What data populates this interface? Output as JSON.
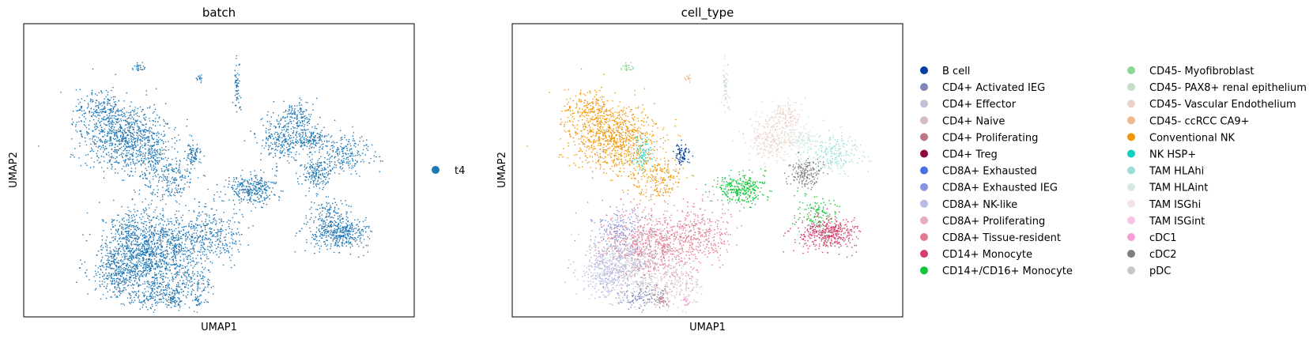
{
  "chart_data": [
    {
      "type": "scatter",
      "title": "batch",
      "xlabel": "UMAP1",
      "ylabel": "UMAP2",
      "ticks": "none",
      "grid": false,
      "legend_placement": "right",
      "series": [
        {
          "name": "t4",
          "color": "#1f77b4"
        }
      ]
    },
    {
      "type": "scatter",
      "title": "cell_type",
      "xlabel": "UMAP1",
      "ylabel": "UMAP2",
      "ticks": "none",
      "grid": false,
      "legend_placement": "right",
      "legend_columns": 2,
      "series": [
        {
          "name": "B cell",
          "color": "#023fa5"
        },
        {
          "name": "CD4+ Activated IEG",
          "color": "#7d87b9"
        },
        {
          "name": "CD4+ Effector",
          "color": "#bec1d4"
        },
        {
          "name": "CD4+ Naive",
          "color": "#d6bcc0"
        },
        {
          "name": "CD4+ Proliferating",
          "color": "#bb7784"
        },
        {
          "name": "CD4+ Treg",
          "color": "#8e063b"
        },
        {
          "name": "CD8A+ Exhausted",
          "color": "#4a6fe3"
        },
        {
          "name": "CD8A+ Exhausted IEG",
          "color": "#8595e1"
        },
        {
          "name": "CD8A+ NK-like",
          "color": "#b5bbe3"
        },
        {
          "name": "CD8A+ Proliferating",
          "color": "#e6afb9"
        },
        {
          "name": "CD8A+ Tissue-resident",
          "color": "#e07b91"
        },
        {
          "name": "CD14+ Monocyte",
          "color": "#d33f6a"
        },
        {
          "name": "CD14+/CD16+ Monocyte",
          "color": "#11c638"
        },
        {
          "name": "CD45- Myofibroblast",
          "color": "#8dd593"
        },
        {
          "name": "CD45- PAX8+ renal epithelium",
          "color": "#c6dec7"
        },
        {
          "name": "CD45- Vascular Endothelium",
          "color": "#ead3c6"
        },
        {
          "name": "CD45- ccRCC CA9+",
          "color": "#f0b98d"
        },
        {
          "name": "Conventional NK",
          "color": "#ef9708"
        },
        {
          "name": "NK HSP+",
          "color": "#0fcfc0"
        },
        {
          "name": "TAM HLAhi",
          "color": "#9cded6"
        },
        {
          "name": "TAM HLAint",
          "color": "#d5eae7"
        },
        {
          "name": "TAM ISGhi",
          "color": "#f3e1eb"
        },
        {
          "name": "TAM ISGint",
          "color": "#f6c4e1"
        },
        {
          "name": "cDC1",
          "color": "#f79cd4"
        },
        {
          "name": "cDC2",
          "color": "#7f7f7f"
        },
        {
          "name": "pDC",
          "color": "#c7c7c7"
        }
      ]
    }
  ]
}
